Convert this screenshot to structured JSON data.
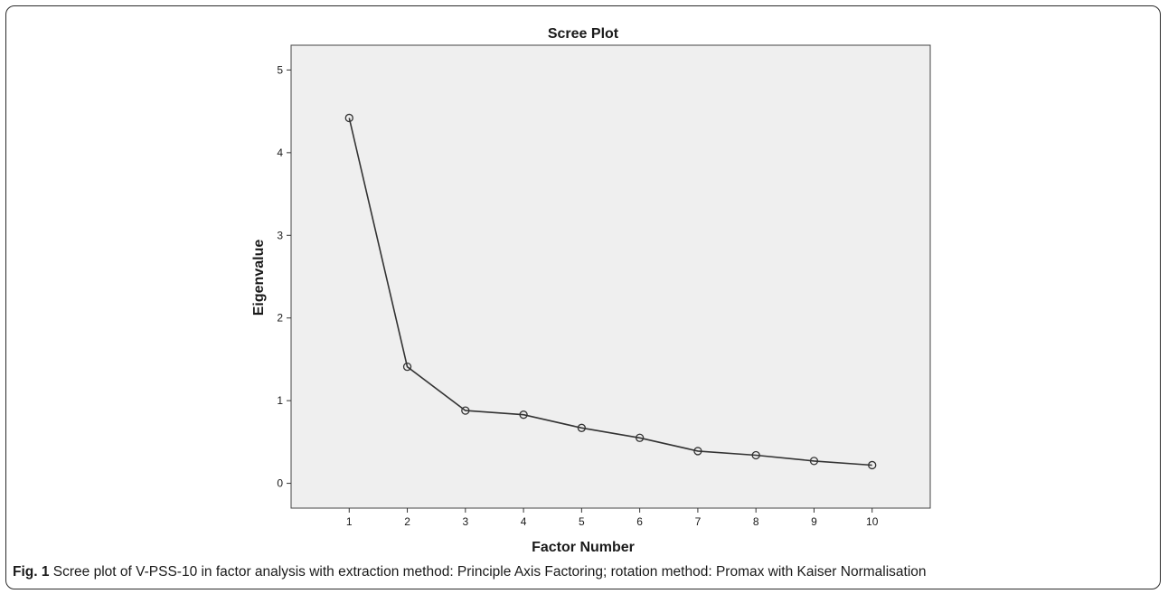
{
  "chart_data": {
    "type": "line",
    "title": "Scree Plot",
    "xlabel": "Factor Number",
    "ylabel": "Eigenvalue",
    "x": [
      1,
      2,
      3,
      4,
      5,
      6,
      7,
      8,
      9,
      10
    ],
    "x_ticks": [
      "1",
      "2",
      "3",
      "4",
      "5",
      "6",
      "7",
      "8",
      "9",
      "10"
    ],
    "y": [
      4.42,
      1.41,
      0.88,
      0.83,
      0.67,
      0.55,
      0.39,
      0.34,
      0.27,
      0.22
    ],
    "y_ticks": [
      "0",
      "1",
      "2",
      "3",
      "4",
      "5"
    ],
    "xlim": [
      0,
      11
    ],
    "ylim": [
      -0.3,
      5.3
    ],
    "marker": "open-circle",
    "grid": false,
    "legend": "none",
    "colors": {
      "plot_background": "#efefef",
      "line": "#333333",
      "axis": "#333333"
    }
  },
  "caption": {
    "label": "Fig. 1",
    "text": "Scree plot of V-PSS-10 in factor analysis with extraction method: Principle Axis Factoring; rotation method: Promax with Kaiser Normalisation"
  }
}
